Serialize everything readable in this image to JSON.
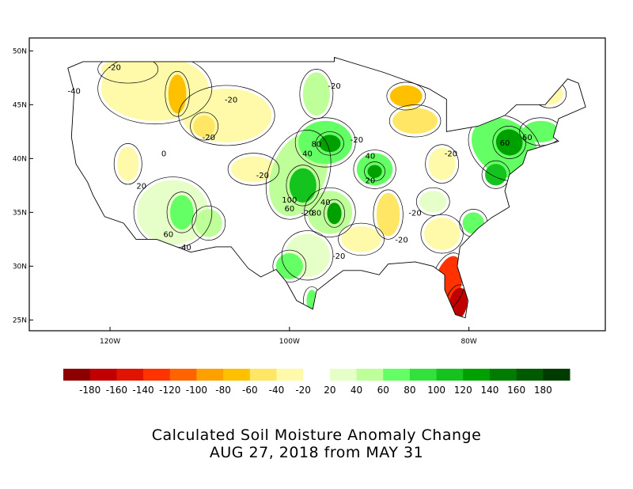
{
  "map": {
    "lat_labels": [
      "50N",
      "45N",
      "40N",
      "35N",
      "30N",
      "25N"
    ],
    "lat_values": [
      50,
      45,
      40,
      35,
      30,
      25
    ],
    "lon_labels": [
      "120W",
      "100W",
      "80W"
    ],
    "lon_values": [
      -120,
      -100,
      -80
    ],
    "extent": {
      "lon": [
        -129,
        -64.8
      ],
      "lat": [
        24,
        51.2
      ]
    },
    "contour_labels": [
      "-40",
      "-20",
      "0",
      "20",
      "40",
      "60",
      "80",
      "100"
    ]
  },
  "colorbar": {
    "labels": [
      "-180",
      "-160",
      "-140",
      "-120",
      "-100",
      "-80",
      "-60",
      "-40",
      "-20",
      "20",
      "40",
      "60",
      "80",
      "100",
      "120",
      "140",
      "160",
      "180"
    ],
    "colors": [
      "#8c0000",
      "#c00000",
      "#e01400",
      "#ff3200",
      "#ff6400",
      "#ffa000",
      "#ffc000",
      "#ffe664",
      "#fffaaa",
      "#ffffff",
      "#e6ffc8",
      "#beff9a",
      "#64ff64",
      "#32e13c",
      "#14c31e",
      "#00a000",
      "#007d00",
      "#005a00",
      "#003c00"
    ]
  },
  "title": {
    "line1": "Calculated Soil Moisture Anomaly Change",
    "line2": "AUG 27, 2018 from MAY 31"
  }
}
